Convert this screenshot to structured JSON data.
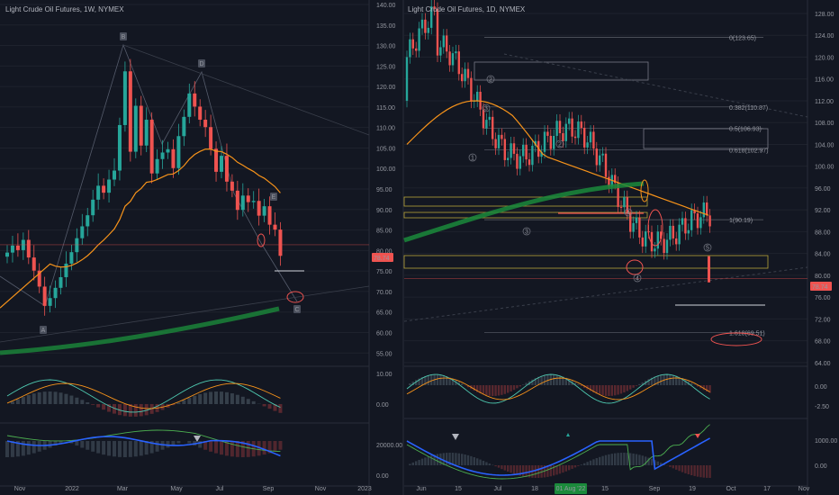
{
  "weekly": {
    "title": "Light Crude Oil Futures, 1W, NYMEX",
    "x_labels": [
      "Nov",
      "2022",
      "Mar",
      "May",
      "Jul",
      "Sep",
      "Nov",
      "2023"
    ],
    "y_ticks": [
      "140.00",
      "135.00",
      "130.00",
      "125.00",
      "120.00",
      "115.00",
      "110.00",
      "105.00",
      "100.00",
      "95.00",
      "90.00",
      "85.00",
      "80.00",
      "75.00",
      "70.00",
      "65.00",
      "60.00",
      "55.00"
    ],
    "price_tag": "78.74",
    "osc1_ticks": [
      "10.00",
      "0.00"
    ],
    "osc2_ticks": [
      "20000.00",
      "0.00"
    ],
    "wave_labels": [
      "B",
      "D",
      "E",
      "A",
      "C"
    ]
  },
  "daily": {
    "title": "Light Crude Oil Futures, 1D, NYMEX",
    "x_labels": [
      "Jun",
      "15",
      "Jul",
      "18",
      "Aug '22",
      "15",
      "Sep",
      "19",
      "Oct",
      "17",
      "Nov"
    ],
    "x_highlight": "01 Aug '22",
    "y_ticks": [
      "128.00",
      "124.00",
      "120.00",
      "116.00",
      "112.00",
      "108.00",
      "104.00",
      "100.00",
      "96.00",
      "92.00",
      "88.00",
      "84.00",
      "80.00",
      "76.00",
      "72.00",
      "68.00",
      "64.00"
    ],
    "price_tag": "78.74",
    "fib_labels": [
      "0(123.65)",
      "0.382(110.87)",
      "0.5(106.93)",
      "0.618(102.97)",
      "1(90.19)",
      "1.618(69.51)"
    ],
    "osc1_ticks": [
      "0.00",
      "-2.50"
    ],
    "osc2_ticks": [
      "1000.00",
      "0.00"
    ],
    "wave_labels": [
      "1",
      "2",
      "3",
      "4",
      "5",
      "2",
      "3",
      "4"
    ]
  },
  "chart_data": [
    {
      "type": "candlestick",
      "title": "Light Crude Oil Futures, 1W, NYMEX",
      "ylim": [
        52,
        141
      ],
      "close": [
        79.5,
        81.2,
        80.1,
        82.6,
        78.3,
        75.1,
        71.2,
        66.5,
        68.4,
        70.9,
        73.5,
        76.8,
        79.6,
        83.0,
        85.9,
        88.6,
        92.4,
        95.8,
        94.1,
        97.3,
        99.5,
        110.6,
        123.7,
        104.1,
        115.3,
        105.6,
        111.9,
        98.8,
        102.3,
        103.9,
        104.7,
        100.1,
        107.9,
        112.6,
        118.3,
        115.1,
        111.9,
        110.1,
        104.8,
        99.2,
        103.1,
        96.8,
        94.6,
        89.9,
        93.4,
        91.8,
        92.1,
        88.5,
        90.8,
        86.3,
        85.1,
        78.7
      ],
      "overlays": [
        "EMA (orange)",
        "MA band (green)"
      ]
    },
    {
      "type": "candlestick",
      "title": "Light Crude Oil Futures, 1D, NYMEX",
      "ylim": [
        64,
        130
      ],
      "fib_levels": [
        123.65,
        110.87,
        106.93,
        102.97,
        90.19,
        69.51
      ],
      "last_price": 78.74
    }
  ]
}
